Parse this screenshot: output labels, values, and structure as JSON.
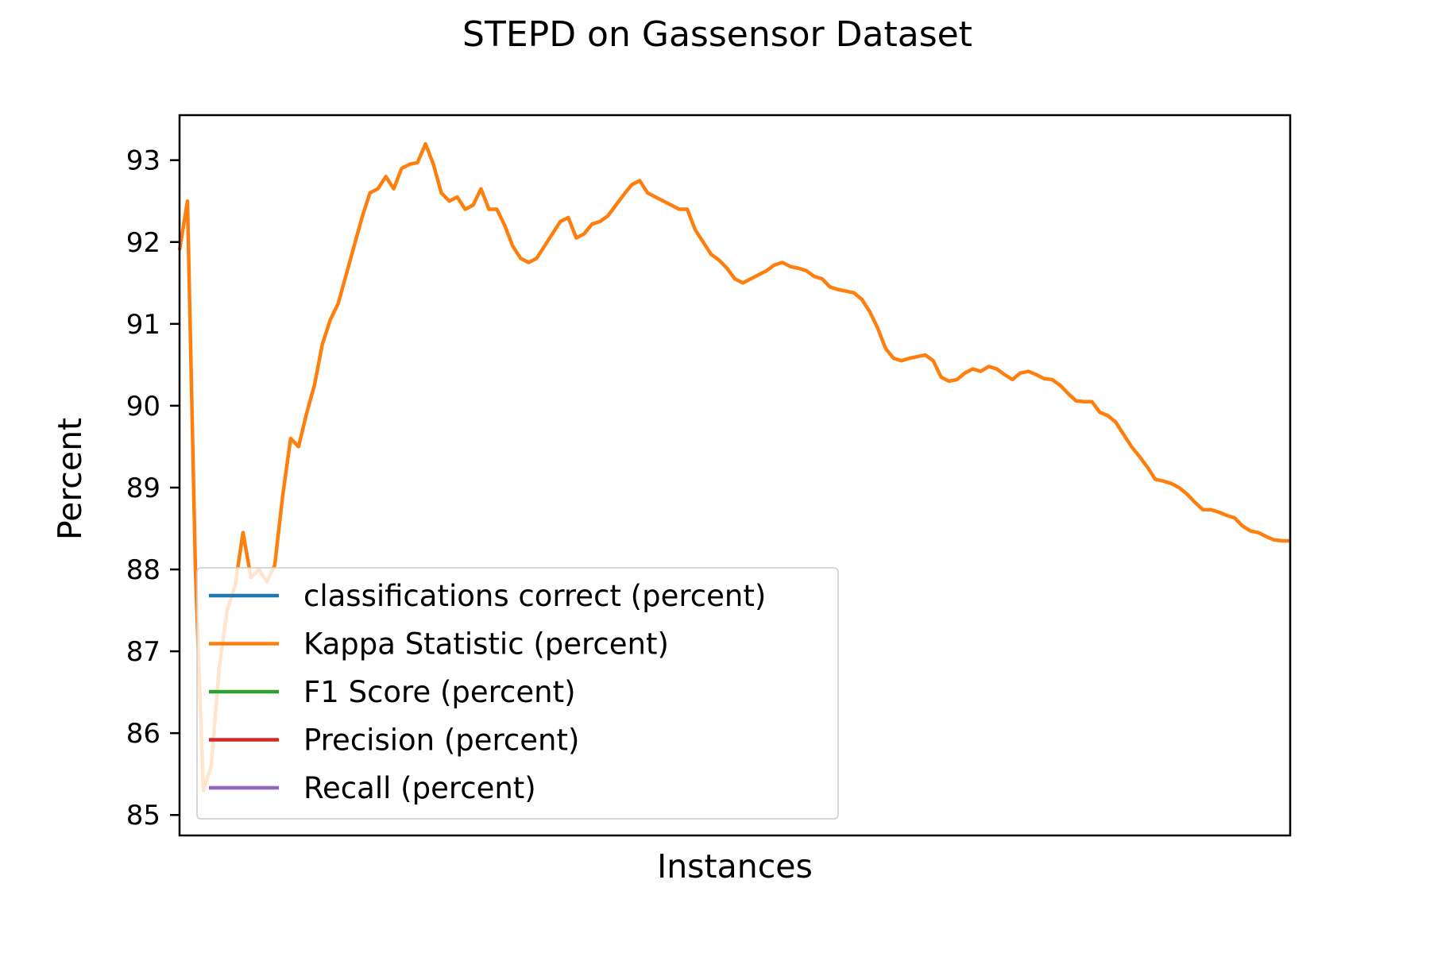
{
  "chart_data": {
    "type": "line",
    "title": "STEPD on Gassensor Dataset",
    "xlabel": "Instances",
    "ylabel": "Percent",
    "ylim": [
      84.75,
      93.55
    ],
    "xlim": [
      0,
      140
    ],
    "x_ticks_shown": false,
    "grid": false,
    "legend_position": "lower-left",
    "yticks": [
      "85",
      "86",
      "87",
      "88",
      "89",
      "90",
      "91",
      "92",
      "93"
    ],
    "series": [
      {
        "name": "classifications correct (percent)",
        "color": "#1f77b4",
        "values": []
      },
      {
        "name": "Kappa Statistic (percent)",
        "color": "#ff7f0e",
        "values": [
          [
            0,
            91.9
          ],
          [
            1,
            92.5
          ],
          [
            2,
            88.0
          ],
          [
            3,
            85.3
          ],
          [
            4,
            85.6
          ],
          [
            5,
            86.8
          ],
          [
            6,
            87.5
          ],
          [
            7,
            87.8
          ],
          [
            8,
            88.45
          ],
          [
            9,
            87.9
          ],
          [
            10,
            88.0
          ],
          [
            11,
            87.85
          ],
          [
            12,
            88.05
          ],
          [
            13,
            88.9
          ],
          [
            14,
            89.6
          ],
          [
            15,
            89.5
          ],
          [
            16,
            89.9
          ],
          [
            17,
            90.25
          ],
          [
            18,
            90.75
          ],
          [
            19,
            91.05
          ],
          [
            20,
            91.25
          ],
          [
            21,
            91.6
          ],
          [
            22,
            91.95
          ],
          [
            23,
            92.3
          ],
          [
            24,
            92.6
          ],
          [
            25,
            92.65
          ],
          [
            26,
            92.8
          ],
          [
            27,
            92.65
          ],
          [
            28,
            92.9
          ],
          [
            29,
            92.95
          ],
          [
            30,
            92.97
          ],
          [
            31,
            93.2
          ],
          [
            32,
            92.95
          ],
          [
            33,
            92.6
          ],
          [
            34,
            92.5
          ],
          [
            35,
            92.55
          ],
          [
            36,
            92.4
          ],
          [
            37,
            92.45
          ],
          [
            38,
            92.65
          ],
          [
            39,
            92.4
          ],
          [
            40,
            92.4
          ],
          [
            41,
            92.2
          ],
          [
            42,
            91.95
          ],
          [
            43,
            91.8
          ],
          [
            44,
            91.75
          ],
          [
            45,
            91.8
          ],
          [
            46,
            91.95
          ],
          [
            47,
            92.1
          ],
          [
            48,
            92.25
          ],
          [
            49,
            92.3
          ],
          [
            50,
            92.05
          ],
          [
            51,
            92.1
          ],
          [
            52,
            92.22
          ],
          [
            53,
            92.25
          ],
          [
            54,
            92.32
          ],
          [
            55,
            92.45
          ],
          [
            56,
            92.58
          ],
          [
            57,
            92.7
          ],
          [
            58,
            92.75
          ],
          [
            59,
            92.6
          ],
          [
            60,
            92.55
          ],
          [
            61,
            92.5
          ],
          [
            62,
            92.45
          ],
          [
            63,
            92.4
          ],
          [
            64,
            92.4
          ],
          [
            65,
            92.15
          ],
          [
            66,
            92.0
          ],
          [
            67,
            91.85
          ],
          [
            68,
            91.78
          ],
          [
            69,
            91.68
          ],
          [
            70,
            91.55
          ],
          [
            71,
            91.5
          ],
          [
            72,
            91.55
          ],
          [
            73,
            91.6
          ],
          [
            74,
            91.65
          ],
          [
            75,
            91.72
          ],
          [
            76,
            91.75
          ],
          [
            77,
            91.7
          ],
          [
            78,
            91.68
          ],
          [
            79,
            91.65
          ],
          [
            80,
            91.58
          ],
          [
            81,
            91.55
          ],
          [
            82,
            91.45
          ],
          [
            83,
            91.42
          ],
          [
            84,
            91.4
          ],
          [
            85,
            91.38
          ],
          [
            86,
            91.3
          ],
          [
            87,
            91.15
          ],
          [
            88,
            90.95
          ],
          [
            89,
            90.7
          ],
          [
            90,
            90.58
          ],
          [
            91,
            90.55
          ],
          [
            92,
            90.58
          ],
          [
            93,
            90.6
          ],
          [
            94,
            90.62
          ],
          [
            95,
            90.55
          ],
          [
            96,
            90.35
          ],
          [
            97,
            90.3
          ],
          [
            98,
            90.32
          ],
          [
            99,
            90.4
          ],
          [
            100,
            90.45
          ],
          [
            101,
            90.42
          ],
          [
            102,
            90.48
          ],
          [
            103,
            90.45
          ],
          [
            104,
            90.38
          ],
          [
            105,
            90.32
          ],
          [
            106,
            90.4
          ],
          [
            107,
            90.42
          ],
          [
            108,
            90.38
          ],
          [
            109,
            90.33
          ],
          [
            110,
            90.32
          ],
          [
            111,
            90.25
          ],
          [
            112,
            90.15
          ],
          [
            113,
            90.06
          ],
          [
            114,
            90.05
          ],
          [
            115,
            90.05
          ],
          [
            116,
            89.92
          ],
          [
            117,
            89.88
          ],
          [
            118,
            89.8
          ],
          [
            119,
            89.65
          ],
          [
            120,
            89.5
          ],
          [
            121,
            89.38
          ],
          [
            122,
            89.25
          ],
          [
            123,
            89.1
          ],
          [
            124,
            89.08
          ],
          [
            125,
            89.05
          ],
          [
            126,
            89.0
          ],
          [
            127,
            88.92
          ],
          [
            128,
            88.82
          ],
          [
            129,
            88.73
          ],
          [
            130,
            88.73
          ],
          [
            131,
            88.7
          ],
          [
            132,
            88.66
          ],
          [
            133,
            88.63
          ],
          [
            134,
            88.53
          ],
          [
            135,
            88.47
          ],
          [
            136,
            88.45
          ],
          [
            137,
            88.4
          ],
          [
            138,
            88.36
          ],
          [
            139,
            88.35
          ],
          [
            140,
            88.35
          ]
        ]
      },
      {
        "name": "F1 Score (percent)",
        "color": "#2ca02c",
        "values": []
      },
      {
        "name": "Precision (percent)",
        "color": "#d62728",
        "values": []
      },
      {
        "name": "Recall (percent)",
        "color": "#9467bd",
        "values": []
      }
    ]
  }
}
